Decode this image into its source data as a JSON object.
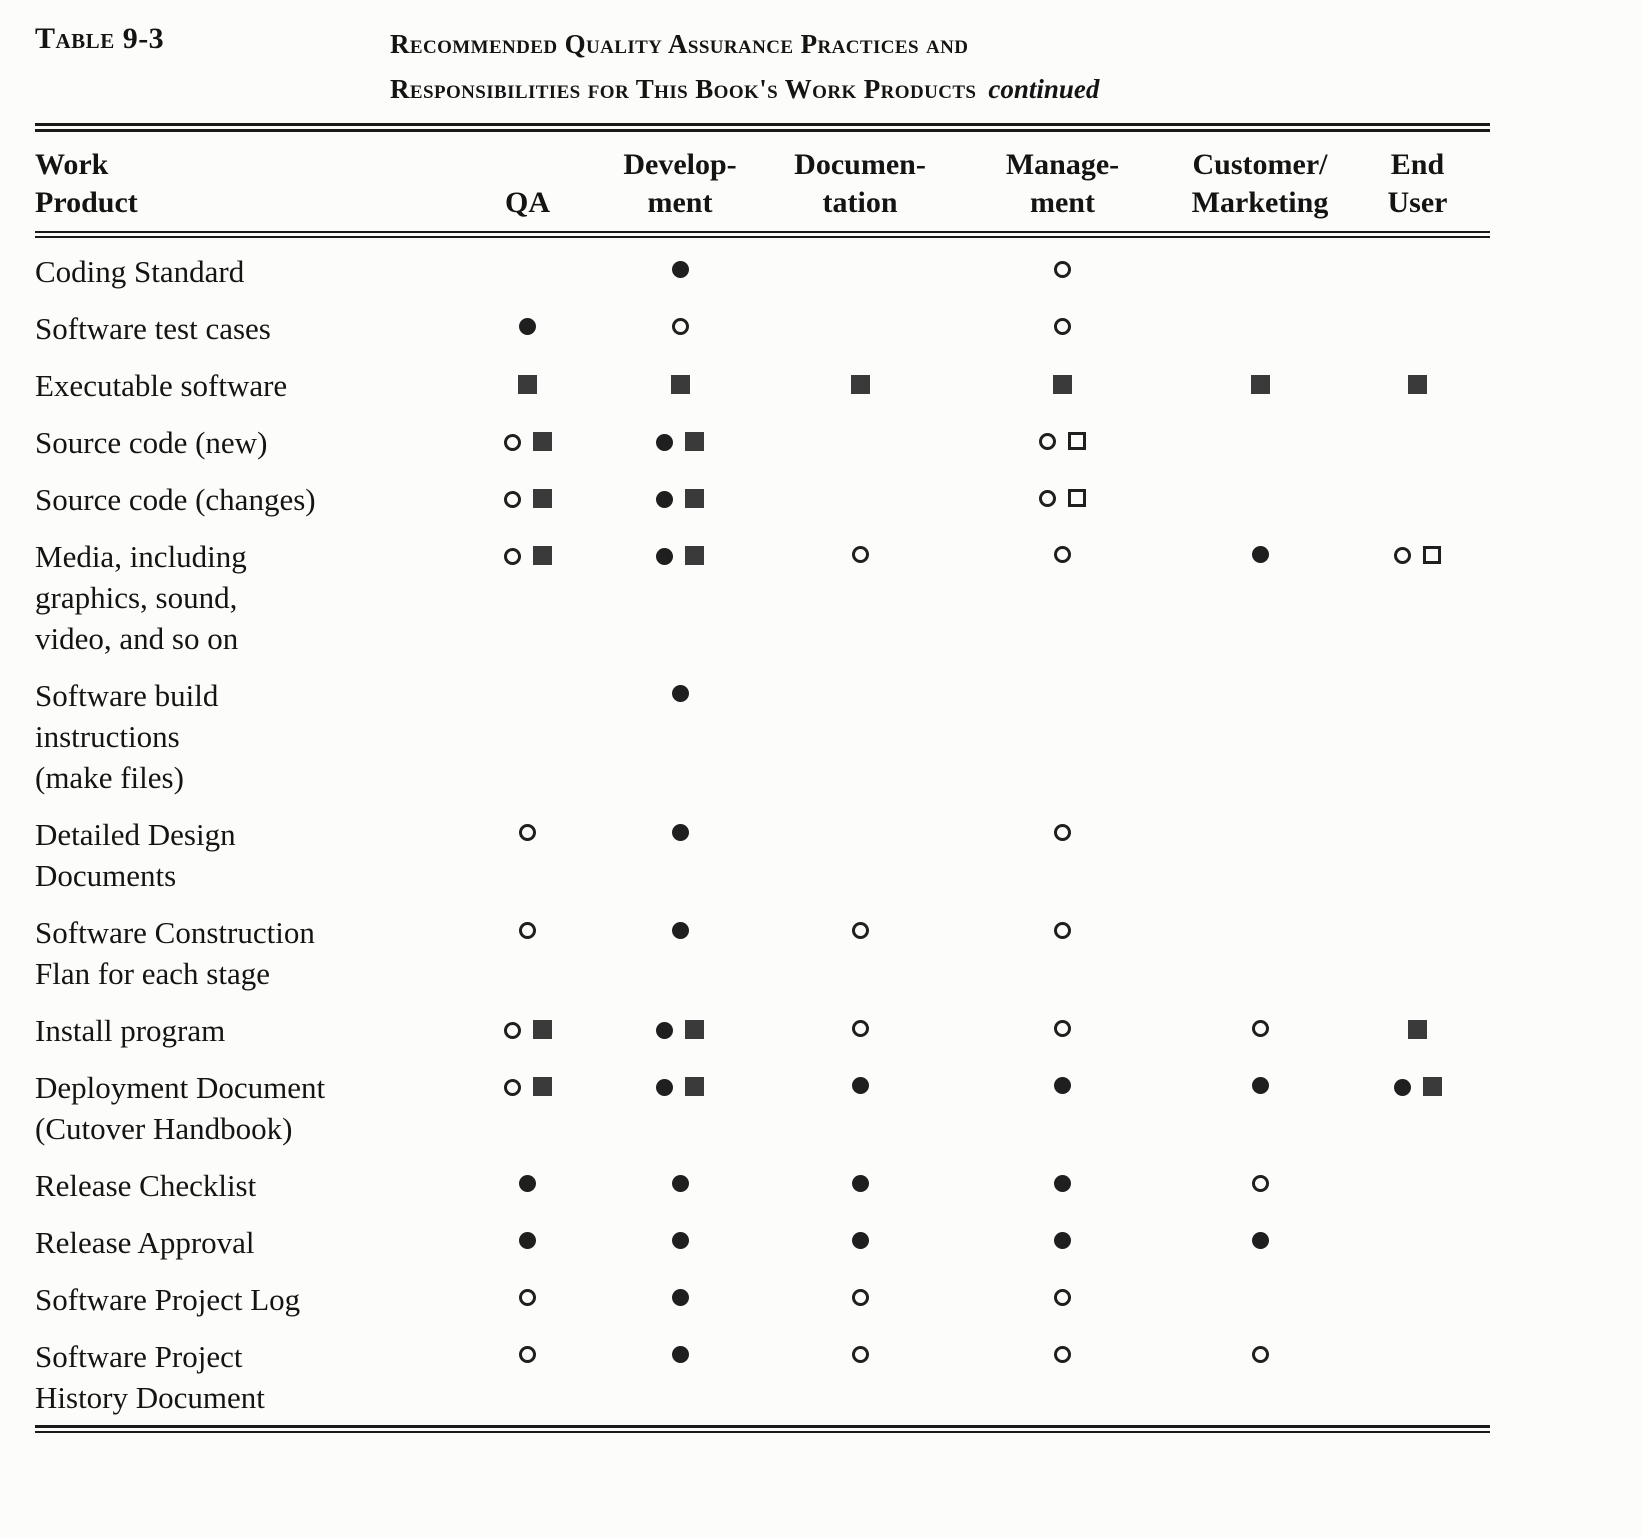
{
  "caption": {
    "table_label": "Table 9-3",
    "title_line1": "Recommended Quality Assurance Practices and",
    "title_line2": "Responsibilities for This Book's Work Products",
    "continued": "continued"
  },
  "symbols": {
    "filled-circle": "●",
    "open-circle": "○",
    "filled-square": "■",
    "open-square": "□"
  },
  "table": {
    "columns": [
      "Work\nProduct",
      "QA",
      "Develop-\nment",
      "Documen-\ntation",
      "Manage-\nment",
      "Customer/\nMarketing",
      "End\nUser"
    ],
    "rows": [
      {
        "product": "Coding Standard",
        "cells": [
          [],
          [
            "filled-circle"
          ],
          [],
          [
            "open-circle"
          ],
          [],
          []
        ]
      },
      {
        "product": "Software test cases",
        "cells": [
          [
            "filled-circle"
          ],
          [
            "open-circle"
          ],
          [],
          [
            "open-circle"
          ],
          [],
          []
        ]
      },
      {
        "product": "Executable software",
        "cells": [
          [
            "filled-square"
          ],
          [
            "filled-square"
          ],
          [
            "filled-square"
          ],
          [
            "filled-square"
          ],
          [
            "filled-square"
          ],
          [
            "filled-square"
          ]
        ]
      },
      {
        "product": "Source code (new)",
        "cells": [
          [
            "open-circle",
            "filled-square"
          ],
          [
            "filled-circle",
            "filled-square"
          ],
          [],
          [
            "open-circle",
            "open-square"
          ],
          [],
          []
        ]
      },
      {
        "product": "Source code (changes)",
        "cells": [
          [
            "open-circle",
            "filled-square"
          ],
          [
            "filled-circle",
            "filled-square"
          ],
          [],
          [
            "open-circle",
            "open-square"
          ],
          [],
          []
        ]
      },
      {
        "product": "Media, including\ngraphics, sound,\nvideo, and so on",
        "cells": [
          [
            "open-circle",
            "filled-square"
          ],
          [
            "filled-circle",
            "filled-square"
          ],
          [
            "open-circle"
          ],
          [
            "open-circle"
          ],
          [
            "filled-circle"
          ],
          [
            "open-circle",
            "open-square"
          ]
        ]
      },
      {
        "product": "Software build\ninstructions\n(make files)",
        "cells": [
          [],
          [
            "filled-circle"
          ],
          [],
          [],
          [],
          []
        ]
      },
      {
        "product": "Detailed Design\nDocuments",
        "cells": [
          [
            "open-circle"
          ],
          [
            "filled-circle"
          ],
          [],
          [
            "open-circle"
          ],
          [],
          []
        ]
      },
      {
        "product": "Software Construction\nFlan for each stage",
        "cells": [
          [
            "open-circle"
          ],
          [
            "filled-circle"
          ],
          [
            "open-circle"
          ],
          [
            "open-circle"
          ],
          [],
          []
        ]
      },
      {
        "product": "Install program",
        "cells": [
          [
            "open-circle",
            "filled-square"
          ],
          [
            "filled-circle",
            "filled-square"
          ],
          [
            "open-circle"
          ],
          [
            "open-circle"
          ],
          [
            "open-circle"
          ],
          [
            "filled-square"
          ]
        ]
      },
      {
        "product": "Deployment Document\n(Cutover Handbook)",
        "cells": [
          [
            "open-circle",
            "filled-square"
          ],
          [
            "filled-circle",
            "filled-square"
          ],
          [
            "filled-circle"
          ],
          [
            "filled-circle"
          ],
          [
            "filled-circle"
          ],
          [
            "filled-circle",
            "filled-square"
          ]
        ]
      },
      {
        "product": "Release Checklist",
        "cells": [
          [
            "filled-circle"
          ],
          [
            "filled-circle"
          ],
          [
            "filled-circle"
          ],
          [
            "filled-circle"
          ],
          [
            "open-circle"
          ],
          []
        ]
      },
      {
        "product": "Release Approval",
        "cells": [
          [
            "filled-circle"
          ],
          [
            "filled-circle"
          ],
          [
            "filled-circle"
          ],
          [
            "filled-circle"
          ],
          [
            "filled-circle"
          ],
          []
        ]
      },
      {
        "product": "Software Project Log",
        "cells": [
          [
            "open-circle"
          ],
          [
            "filled-circle"
          ],
          [
            "open-circle"
          ],
          [
            "open-circle"
          ],
          [],
          []
        ]
      },
      {
        "product": "Software Project\nHistory Document",
        "cells": [
          [
            "open-circle"
          ],
          [
            "filled-circle"
          ],
          [
            "open-circle"
          ],
          [
            "open-circle"
          ],
          [
            "open-circle"
          ],
          []
        ]
      }
    ]
  }
}
